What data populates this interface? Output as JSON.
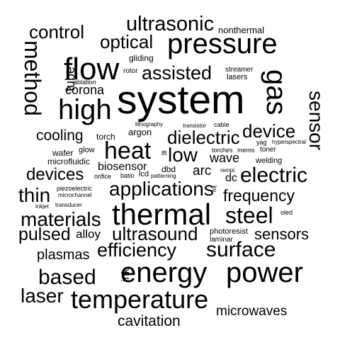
{
  "text_color": "#000000",
  "background": "#ffffff",
  "words": [
    {
      "text": "system"
    },
    {
      "text": "thermal"
    },
    {
      "text": "energy"
    },
    {
      "text": "power"
    },
    {
      "text": "flow"
    },
    {
      "text": "pressure"
    },
    {
      "text": "gas"
    },
    {
      "text": "high"
    },
    {
      "text": "temperature"
    },
    {
      "text": "heat"
    },
    {
      "text": "ultrasonic"
    },
    {
      "text": "steel"
    },
    {
      "text": "surface"
    },
    {
      "text": "applications"
    },
    {
      "text": "electric"
    },
    {
      "text": "method"
    },
    {
      "text": "sensor"
    },
    {
      "text": "materials"
    },
    {
      "text": "based"
    },
    {
      "text": "efficiency"
    },
    {
      "text": "ultrasound"
    },
    {
      "text": "assisted"
    },
    {
      "text": "optical"
    },
    {
      "text": "control"
    },
    {
      "text": "low"
    },
    {
      "text": "device"
    },
    {
      "text": "dielectric"
    },
    {
      "text": "laser"
    },
    {
      "text": "frequency"
    },
    {
      "text": "pulsed"
    },
    {
      "text": "thin"
    },
    {
      "text": "devices"
    },
    {
      "text": "sensors"
    },
    {
      "text": "plasmas"
    },
    {
      "text": "microwaves"
    },
    {
      "text": "cavitation"
    },
    {
      "text": "cooling"
    },
    {
      "text": "corona"
    },
    {
      "text": "tube"
    },
    {
      "text": "wave"
    },
    {
      "text": "arc"
    },
    {
      "text": "alloy"
    },
    {
      "text": "biosensor"
    },
    {
      "text": "nonthermal"
    },
    {
      "text": "ink"
    },
    {
      "text": "dc"
    },
    {
      "text": "argon"
    },
    {
      "text": "torch"
    },
    {
      "text": "dbd"
    },
    {
      "text": "microfluidic"
    },
    {
      "text": "wafer"
    },
    {
      "text": "glow"
    },
    {
      "text": "welding"
    },
    {
      "text": "gliding"
    },
    {
      "text": "rotor"
    },
    {
      "text": "streamer"
    },
    {
      "text": "lasers"
    },
    {
      "text": "ablation"
    },
    {
      "text": "photoresist"
    },
    {
      "text": "laminar"
    },
    {
      "text": "lithography"
    },
    {
      "text": "transistor"
    },
    {
      "text": "cable"
    },
    {
      "text": "torches"
    },
    {
      "text": "mems"
    },
    {
      "text": "yag"
    },
    {
      "text": "hyperspectral"
    },
    {
      "text": "toner"
    },
    {
      "text": "tft"
    },
    {
      "text": "piezoelectric"
    },
    {
      "text": "microchannel"
    },
    {
      "text": "inkjet"
    },
    {
      "text": "transducer"
    },
    {
      "text": "orifice"
    },
    {
      "text": "batio"
    },
    {
      "text": "lcd"
    },
    {
      "text": "patterning"
    },
    {
      "text": "rempi"
    },
    {
      "text": "kv"
    },
    {
      "text": "oled"
    }
  ]
}
